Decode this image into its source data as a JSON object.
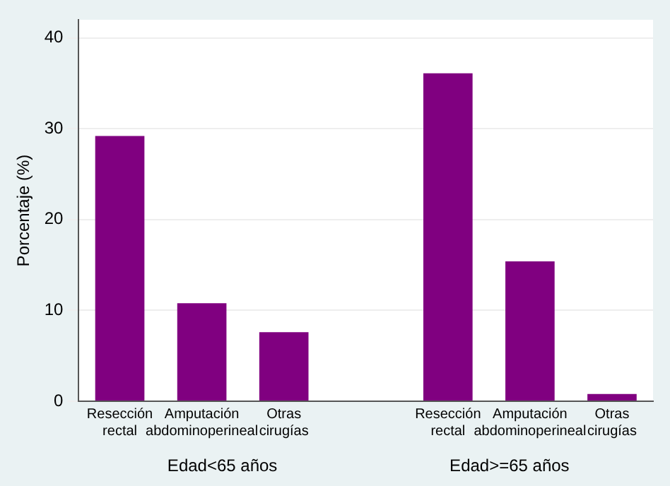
{
  "chart_data": {
    "type": "bar",
    "ylabel": "Porcentaje (%)",
    "categories": [
      "Resección rectal",
      "Amputación abdominoperineal",
      "Otras cirugías",
      null,
      "Resección rectal",
      "Amputación abdominoperineal",
      "Otras cirugías"
    ],
    "values": [
      29.2,
      10.8,
      7.6,
      null,
      36.1,
      15.4,
      0.8
    ],
    "color": "#800080",
    "ylim": [
      0,
      42
    ],
    "yticks": [
      0,
      10,
      20,
      30,
      40
    ],
    "grid": "y",
    "annotations": [
      "Edad<65 años",
      "Edad>=65 años"
    ]
  }
}
